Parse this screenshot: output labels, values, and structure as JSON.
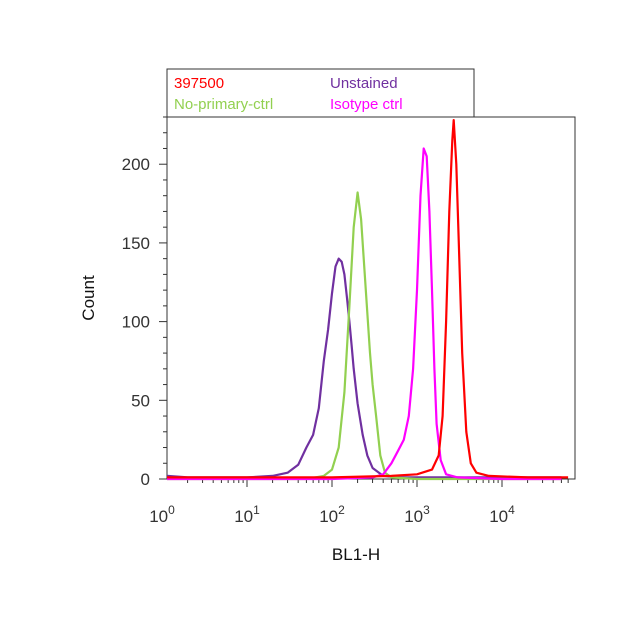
{
  "chart_data": {
    "type": "line",
    "title": "",
    "xlabel": "BL1-H",
    "ylabel": "Count",
    "x_scale": "log",
    "xlim": [
      1,
      60000
    ],
    "ylim": [
      0,
      230
    ],
    "grid": false,
    "legend_placement": "top",
    "x_ticks": [
      {
        "value": 1,
        "base": "10",
        "exp": "0"
      },
      {
        "value": 10,
        "base": "10",
        "exp": "1"
      },
      {
        "value": 100,
        "base": "10",
        "exp": "2"
      },
      {
        "value": 1000,
        "base": "10",
        "exp": "3"
      },
      {
        "value": 10000,
        "base": "10",
        "exp": "4"
      }
    ],
    "y_ticks": [
      {
        "value": 0,
        "label": "0"
      },
      {
        "value": 50,
        "label": "50"
      },
      {
        "value": 100,
        "label": "100"
      },
      {
        "value": 150,
        "label": "150"
      },
      {
        "value": 200,
        "label": "200"
      }
    ],
    "series": [
      {
        "name": "Unstained",
        "color": "#7030A0",
        "points": [
          [
            1,
            2
          ],
          [
            2,
            1
          ],
          [
            5,
            1
          ],
          [
            10,
            1
          ],
          [
            20,
            2
          ],
          [
            30,
            4
          ],
          [
            40,
            9
          ],
          [
            50,
            20
          ],
          [
            60,
            28
          ],
          [
            70,
            45
          ],
          [
            80,
            75
          ],
          [
            90,
            95
          ],
          [
            100,
            118
          ],
          [
            110,
            135
          ],
          [
            120,
            140
          ],
          [
            130,
            138
          ],
          [
            140,
            130
          ],
          [
            150,
            115
          ],
          [
            160,
            100
          ],
          [
            170,
            85
          ],
          [
            180,
            70
          ],
          [
            200,
            48
          ],
          [
            230,
            28
          ],
          [
            260,
            15
          ],
          [
            300,
            7
          ],
          [
            400,
            2
          ],
          [
            600,
            1
          ],
          [
            2000,
            1
          ],
          [
            10000,
            1
          ],
          [
            50000,
            1
          ]
        ]
      },
      {
        "name": "No-primary-ctrl",
        "color": "#92D050",
        "points": [
          [
            1,
            0
          ],
          [
            10,
            0
          ],
          [
            50,
            0
          ],
          [
            80,
            2
          ],
          [
            100,
            6
          ],
          [
            120,
            20
          ],
          [
            140,
            55
          ],
          [
            160,
            110
          ],
          [
            180,
            160
          ],
          [
            200,
            182
          ],
          [
            220,
            165
          ],
          [
            250,
            120
          ],
          [
            280,
            80
          ],
          [
            300,
            60
          ],
          [
            330,
            40
          ],
          [
            370,
            15
          ],
          [
            420,
            4
          ],
          [
            500,
            1
          ],
          [
            1000,
            0
          ],
          [
            50000,
            0
          ]
        ]
      },
      {
        "name": "Isotype ctrl",
        "color": "#FF00FF",
        "points": [
          [
            1,
            0
          ],
          [
            100,
            0
          ],
          [
            300,
            1
          ],
          [
            400,
            3
          ],
          [
            500,
            10
          ],
          [
            600,
            18
          ],
          [
            700,
            25
          ],
          [
            800,
            40
          ],
          [
            900,
            70
          ],
          [
            1000,
            120
          ],
          [
            1100,
            180
          ],
          [
            1200,
            210
          ],
          [
            1300,
            205
          ],
          [
            1400,
            170
          ],
          [
            1500,
            120
          ],
          [
            1600,
            70
          ],
          [
            1700,
            35
          ],
          [
            1900,
            12
          ],
          [
            2200,
            3
          ],
          [
            3000,
            1
          ],
          [
            10000,
            0
          ],
          [
            50000,
            0
          ]
        ]
      },
      {
        "name": "397500",
        "color": "#FF0000",
        "points": [
          [
            1,
            1
          ],
          [
            10,
            1
          ],
          [
            100,
            1
          ],
          [
            500,
            2
          ],
          [
            1000,
            3
          ],
          [
            1500,
            6
          ],
          [
            1800,
            15
          ],
          [
            2000,
            40
          ],
          [
            2200,
            100
          ],
          [
            2400,
            170
          ],
          [
            2600,
            215
          ],
          [
            2700,
            228
          ],
          [
            2900,
            200
          ],
          [
            3100,
            150
          ],
          [
            3400,
            80
          ],
          [
            3800,
            30
          ],
          [
            4300,
            10
          ],
          [
            5000,
            4
          ],
          [
            7000,
            2
          ],
          [
            20000,
            1
          ],
          [
            60000,
            1
          ]
        ]
      }
    ]
  },
  "legend": {
    "entries": [
      {
        "label": "397500",
        "color": "#FF0000"
      },
      {
        "label": "Unstained",
        "color": "#7030A0"
      },
      {
        "label": "No-primary-ctrl",
        "color": "#92D050"
      },
      {
        "label": "Isotype ctrl",
        "color": "#FF00FF"
      }
    ]
  }
}
